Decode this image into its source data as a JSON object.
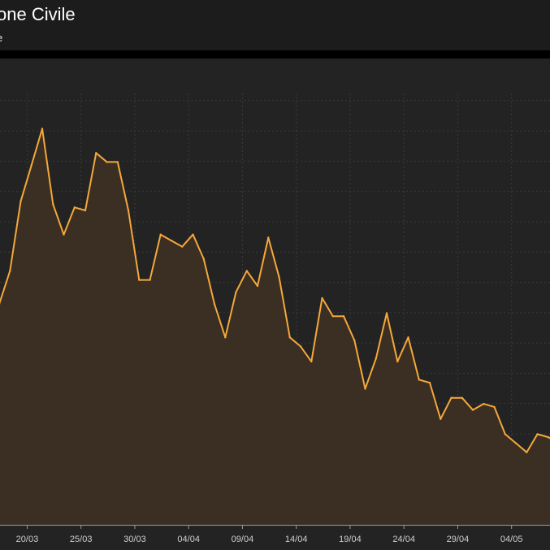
{
  "header": {
    "title": "one Civile",
    "subtitle": "e"
  },
  "colors": {
    "line": "#f5a83a",
    "area": "#3a2f22",
    "grid": "#3a3a3a",
    "background": "#232323",
    "header_background": "#1c1c1c"
  },
  "chart_data": {
    "type": "area",
    "title": "one Civile",
    "subtitle": "e",
    "xlabel": "",
    "ylabel": "",
    "x_tick_labels": [
      "20/03",
      "25/03",
      "30/03",
      "04/04",
      "09/04",
      "14/04",
      "19/04",
      "24/04",
      "29/04",
      "04/05"
    ],
    "x_range": [
      0,
      52
    ],
    "y_range": [
      0,
      140
    ],
    "y_tick_labels_visible": false,
    "grid": true,
    "legend": "none",
    "series": [
      {
        "x": [
          0,
          1,
          2,
          3,
          4,
          5,
          6,
          7,
          8,
          9,
          10,
          11,
          12,
          13,
          14,
          15,
          16,
          17,
          18,
          19,
          20,
          21,
          22,
          23,
          24,
          25,
          26,
          27,
          28,
          29,
          30,
          31,
          32,
          33,
          34,
          35,
          36,
          37,
          38,
          39,
          40,
          41,
          42,
          43,
          44,
          45,
          46,
          47,
          48,
          49,
          50,
          51,
          52
        ],
        "values": [
          73,
          84,
          107,
          119,
          131,
          106,
          96,
          105,
          104,
          123,
          120,
          120,
          104,
          81,
          81,
          96,
          94,
          92,
          96,
          88,
          73,
          62,
          77,
          84,
          79,
          95,
          82,
          62,
          59,
          54,
          75,
          69,
          69,
          61,
          45,
          55,
          70,
          54,
          62,
          48,
          47,
          35,
          42,
          42,
          38,
          40,
          39,
          30,
          27,
          24,
          30,
          29,
          27
        ]
      }
    ]
  }
}
